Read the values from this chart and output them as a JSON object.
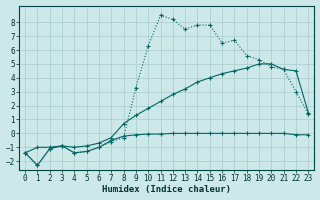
{
  "xlabel": "Humidex (Indice chaleur)",
  "bg_color": "#cce8e8",
  "grid_color": "#aacccc",
  "line_color": "#006666",
  "xlim": [
    -0.5,
    23.5
  ],
  "ylim": [
    -2.6,
    9.2
  ],
  "xticks": [
    0,
    1,
    2,
    3,
    4,
    5,
    6,
    7,
    8,
    9,
    10,
    11,
    12,
    13,
    14,
    15,
    16,
    17,
    18,
    19,
    20,
    21,
    22,
    23
  ],
  "yticks": [
    -2,
    -1,
    0,
    1,
    2,
    3,
    4,
    5,
    6,
    7,
    8
  ],
  "line1_x": [
    0,
    1,
    2,
    3,
    4,
    5,
    6,
    7,
    8,
    9,
    10,
    11,
    12,
    13,
    14,
    15,
    16,
    17,
    18,
    19,
    20,
    21,
    22,
    23
  ],
  "line1_y": [
    -1.4,
    -2.3,
    -1.1,
    -0.9,
    -1.4,
    -1.3,
    -1.0,
    -0.6,
    -0.3,
    3.3,
    6.3,
    8.5,
    8.2,
    7.5,
    7.8,
    7.8,
    6.5,
    6.7,
    5.6,
    5.3,
    4.8,
    4.6,
    3.0,
    1.4
  ],
  "line2_x": [
    0,
    1,
    2,
    3,
    4,
    5,
    6,
    7,
    8,
    9,
    10,
    11,
    12,
    13,
    14,
    15,
    16,
    17,
    18,
    19,
    20,
    21,
    22,
    23
  ],
  "line2_y": [
    -1.4,
    -2.3,
    -1.1,
    -0.9,
    -1.4,
    -1.3,
    -1.0,
    -0.5,
    -0.2,
    -0.1,
    -0.05,
    -0.05,
    0.0,
    0.0,
    0.0,
    0.0,
    0.0,
    0.0,
    0.0,
    0.0,
    0.0,
    0.0,
    -0.1,
    -0.1
  ],
  "line3_x": [
    0,
    1,
    2,
    3,
    4,
    5,
    6,
    7,
    8,
    9,
    10,
    11,
    12,
    13,
    14,
    15,
    16,
    17,
    18,
    19,
    20,
    21,
    22,
    23
  ],
  "line3_y": [
    -1.4,
    -1.0,
    -1.0,
    -0.9,
    -1.0,
    -0.9,
    -0.7,
    -0.3,
    0.7,
    1.3,
    1.8,
    2.3,
    2.8,
    3.2,
    3.7,
    4.0,
    4.3,
    4.5,
    4.7,
    5.0,
    5.0,
    4.6,
    4.5,
    1.5
  ]
}
